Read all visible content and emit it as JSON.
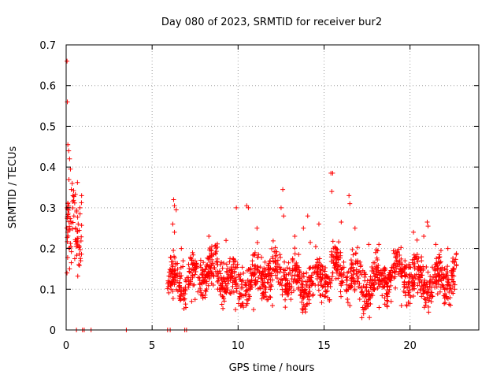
{
  "chart_data": {
    "type": "scatter",
    "title": "Day 080 of 2023, SRMTID for receiver bur2",
    "xlabel": "GPS time / hours",
    "ylabel": "SRMTID / TECUs",
    "xlim": [
      0,
      24
    ],
    "ylim": [
      0,
      0.7
    ],
    "xticks": [
      "0",
      "5",
      "10",
      "15",
      "20"
    ],
    "yticks": [
      "0",
      "0.1",
      "0.2",
      "0.3",
      "0.4",
      "0.5",
      "0.6",
      "0.7"
    ],
    "grid": true,
    "marker": "plus",
    "color": "#ff0000",
    "series": [
      {
        "name": "SRMTID",
        "segments": [
          {
            "x_start": 0.0,
            "x_end": 0.9,
            "base": 0.24,
            "spread": 0.09,
            "count": 70
          },
          {
            "x_start": 5.9,
            "x_end": 22.7,
            "base": 0.13,
            "spread": 0.05,
            "count": 1500
          }
        ],
        "points": [
          [
            0.05,
            0.66
          ],
          [
            0.07,
            0.56
          ],
          [
            0.1,
            0.455
          ],
          [
            0.15,
            0.44
          ],
          [
            0.2,
            0.42
          ],
          [
            0.25,
            0.395
          ],
          [
            0.35,
            0.36
          ],
          [
            0.3,
            0.345
          ],
          [
            0.4,
            0.33
          ],
          [
            0.1,
            0.31
          ],
          [
            0.05,
            0.3
          ],
          [
            0.6,
            0.29
          ],
          [
            0.9,
            0.33
          ],
          [
            0.8,
            0.3
          ],
          [
            0.2,
            0.15
          ],
          [
            0.05,
            0.14
          ],
          [
            0.3,
            0.165
          ],
          [
            0.5,
            0.175
          ],
          [
            0.85,
            0.17
          ],
          [
            0.7,
            0.26
          ],
          [
            0.55,
            0.25
          ],
          [
            0.45,
            0.28
          ],
          [
            0.6,
            0.0
          ],
          [
            0.95,
            0.0
          ],
          [
            1.05,
            0.0
          ],
          [
            1.45,
            0.0
          ],
          [
            3.5,
            0.0
          ],
          [
            5.9,
            0.0
          ],
          [
            6.05,
            0.0
          ],
          [
            6.9,
            0.0
          ],
          [
            7.0,
            0.0
          ],
          [
            6.25,
            0.32
          ],
          [
            6.3,
            0.305
          ],
          [
            6.4,
            0.295
          ],
          [
            6.2,
            0.26
          ],
          [
            6.3,
            0.24
          ],
          [
            6.1,
            0.1
          ],
          [
            6.2,
            0.095
          ],
          [
            6.7,
            0.2
          ],
          [
            6.8,
            0.17
          ],
          [
            12.6,
            0.345
          ],
          [
            12.5,
            0.3
          ],
          [
            12.65,
            0.28
          ],
          [
            15.4,
            0.385
          ],
          [
            15.5,
            0.385
          ],
          [
            15.45,
            0.34
          ],
          [
            14.2,
            0.215
          ],
          [
            16.45,
            0.33
          ],
          [
            16.5,
            0.31
          ],
          [
            16.0,
            0.265
          ],
          [
            10.5,
            0.305
          ],
          [
            10.6,
            0.3
          ],
          [
            9.9,
            0.3
          ],
          [
            11.1,
            0.25
          ],
          [
            14.7,
            0.26
          ],
          [
            17.2,
            0.03
          ],
          [
            17.3,
            0.04
          ],
          [
            17.25,
            0.055
          ],
          [
            16.5,
            0.06
          ],
          [
            18.2,
            0.055
          ],
          [
            21.0,
            0.265
          ],
          [
            21.05,
            0.255
          ],
          [
            20.2,
            0.24
          ],
          [
            20.8,
            0.23
          ],
          [
            22.2,
            0.2
          ],
          [
            9.85,
            0.05
          ],
          [
            10.9,
            0.05
          ],
          [
            12.0,
            0.06
          ],
          [
            7.3,
            0.07
          ],
          [
            7.5,
            0.075
          ],
          [
            19.5,
            0.06
          ],
          [
            20.0,
            0.065
          ],
          [
            18.9,
            0.07
          ],
          [
            22.5,
            0.09
          ],
          [
            22.6,
            0.1
          ],
          [
            13.8,
            0.25
          ],
          [
            14.05,
            0.28
          ],
          [
            13.3,
            0.23
          ],
          [
            8.3,
            0.23
          ],
          [
            9.3,
            0.22
          ],
          [
            16.8,
            0.25
          ],
          [
            17.6,
            0.21
          ],
          [
            18.0,
            0.19
          ],
          [
            19.2,
            0.15
          ],
          [
            21.5,
            0.21
          ]
        ]
      }
    ]
  }
}
